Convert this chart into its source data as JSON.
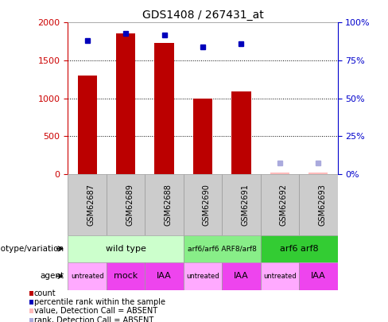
{
  "title": "GDS1408 / 267431_at",
  "samples": [
    "GSM62687",
    "GSM62689",
    "GSM62688",
    "GSM62690",
    "GSM62691",
    "GSM62692",
    "GSM62693"
  ],
  "counts": [
    1300,
    1860,
    1730,
    1000,
    1090,
    20,
    20
  ],
  "percentile_ranks": [
    88,
    93,
    92,
    84,
    86,
    7,
    7
  ],
  "count_absent": [
    false,
    false,
    false,
    false,
    false,
    true,
    true
  ],
  "rank_absent": [
    false,
    false,
    false,
    false,
    false,
    true,
    true
  ],
  "count_color_present": "#bb0000",
  "count_color_absent": "#ffbbbb",
  "rank_color_present": "#0000bb",
  "rank_color_absent": "#aaaadd",
  "ylim_left": [
    0,
    2000
  ],
  "ylim_right": [
    0,
    100
  ],
  "yticks_left": [
    0,
    500,
    1000,
    1500,
    2000
  ],
  "yticks_right": [
    0,
    25,
    50,
    75,
    100
  ],
  "ytick_labels_right": [
    "0%",
    "25%",
    "50%",
    "75%",
    "100%"
  ],
  "genotype_groups": [
    {
      "label": "wild type",
      "start": 0,
      "end": 3,
      "color": "#ccffcc"
    },
    {
      "label": "arf6/arf6 ARF8/arf8",
      "start": 3,
      "end": 5,
      "color": "#88ee88"
    },
    {
      "label": "arf6 arf8",
      "start": 5,
      "end": 7,
      "color": "#33cc33"
    }
  ],
  "agent_labels": [
    "untreated",
    "mock",
    "IAA",
    "untreated",
    "IAA",
    "untreated",
    "IAA"
  ],
  "agent_colors": [
    "#ffaaff",
    "#ee44ee",
    "#ee44ee",
    "#ffaaff",
    "#ee44ee",
    "#ffaaff",
    "#ee44ee"
  ],
  "bar_width": 0.5,
  "background_color": "#ffffff",
  "left_axis_color": "#cc0000",
  "right_axis_color": "#0000cc",
  "sample_box_color": "#cccccc",
  "sample_box_edge": "#999999",
  "genotype_label": "genotype/variation",
  "agent_label": "agent",
  "legend_items": [
    {
      "color": "#bb0000",
      "label": "count",
      "marker": "square"
    },
    {
      "color": "#0000bb",
      "label": "percentile rank within the sample",
      "marker": "square"
    },
    {
      "color": "#ffbbbb",
      "label": "value, Detection Call = ABSENT",
      "marker": "square"
    },
    {
      "color": "#aaaadd",
      "label": "rank, Detection Call = ABSENT",
      "marker": "square"
    }
  ],
  "fig_width": 4.88,
  "fig_height": 4.05,
  "dpi": 100
}
